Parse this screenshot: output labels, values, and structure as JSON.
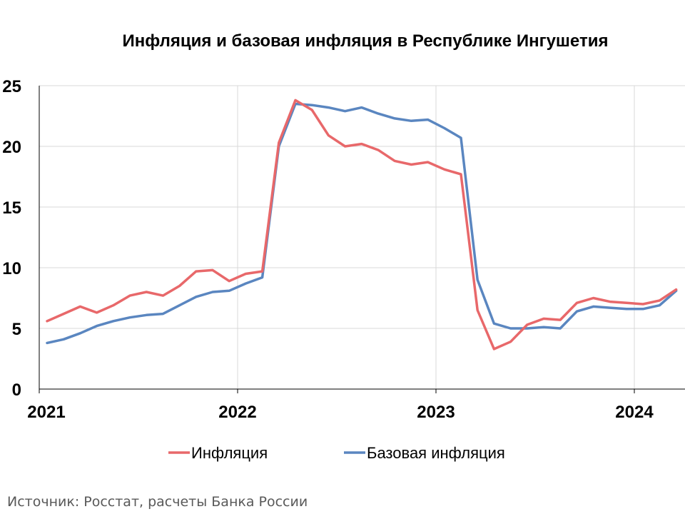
{
  "chart_data": {
    "type": "line",
    "title": "Инфляция и базовая инфляция в Республике Ингушетия",
    "x_tick_labels": [
      "2021",
      "2022",
      "2023",
      "2024"
    ],
    "y_ticks": [
      0,
      5,
      10,
      15,
      20,
      25
    ],
    "ylim": [
      0,
      25
    ],
    "x_range": [
      "2021-01",
      "2024-03"
    ],
    "grid": "horizontal and year gridlines",
    "legend_position": "bottom",
    "x": [
      "2021-01",
      "2021-02",
      "2021-03",
      "2021-04",
      "2021-05",
      "2021-06",
      "2021-07",
      "2021-08",
      "2021-09",
      "2021-10",
      "2021-11",
      "2021-12",
      "2022-01",
      "2022-02",
      "2022-03",
      "2022-04",
      "2022-05",
      "2022-06",
      "2022-07",
      "2022-08",
      "2022-09",
      "2022-10",
      "2022-11",
      "2022-12",
      "2023-01",
      "2023-02",
      "2023-03",
      "2023-04",
      "2023-05",
      "2023-06",
      "2023-07",
      "2023-08",
      "2023-09",
      "2023-10",
      "2023-11",
      "2023-12",
      "2024-01",
      "2024-02",
      "2024-03"
    ],
    "series": [
      {
        "name": "Инфляция",
        "color": "#e8686a",
        "values": [
          5.6,
          6.2,
          6.8,
          6.3,
          6.9,
          7.7,
          8.0,
          7.7,
          8.5,
          9.7,
          9.8,
          8.9,
          9.5,
          9.7,
          20.3,
          23.8,
          23.0,
          20.9,
          20.0,
          20.2,
          19.7,
          18.8,
          18.5,
          18.7,
          18.1,
          17.7,
          6.5,
          3.3,
          3.9,
          5.3,
          5.8,
          5.7,
          7.1,
          7.5,
          7.2,
          7.1,
          7.0,
          7.3,
          8.2
        ]
      },
      {
        "name": "Базовая инфляция",
        "color": "#5a86c0",
        "values": [
          3.8,
          4.1,
          4.6,
          5.2,
          5.6,
          5.9,
          6.1,
          6.2,
          6.9,
          7.6,
          8.0,
          8.1,
          8.7,
          9.2,
          20.0,
          23.5,
          23.4,
          23.2,
          22.9,
          23.2,
          22.7,
          22.3,
          22.1,
          22.2,
          21.5,
          20.7,
          9.0,
          5.4,
          5.0,
          5.0,
          5.1,
          5.0,
          6.4,
          6.8,
          6.7,
          6.6,
          6.6,
          6.9,
          8.1
        ]
      }
    ]
  },
  "source": "Источник: Росстат, расчеты Банка России"
}
